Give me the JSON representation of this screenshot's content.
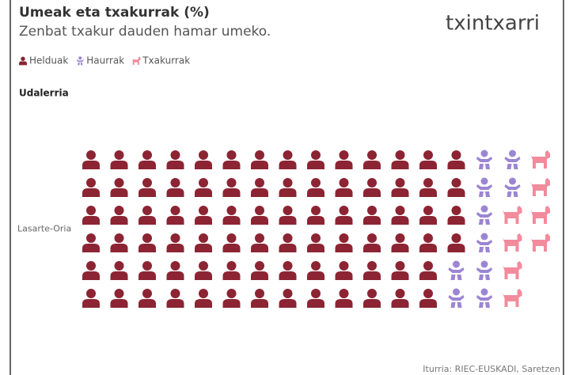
{
  "chart_data": {
    "type": "pictogram",
    "title": "Umeak eta txakurrak (%)",
    "subtitle": "Zenbat txakur dauden hamar umeko.",
    "logo": "txintxarri",
    "y_label": "Udalerria",
    "categories": [
      "Lasarte-Oria"
    ],
    "rows": 6,
    "series": [
      {
        "name": "Helduak",
        "color": "#8c2433",
        "values": [
          82
        ]
      },
      {
        "name": "Haurrak",
        "color": "#9c85d3",
        "values": [
          10
        ]
      },
      {
        "name": "Txakurrak",
        "color": "#f28b9c",
        "values": [
          8
        ]
      }
    ],
    "source": "Iturria: RIEC-EUSKADI, Saretzen"
  }
}
